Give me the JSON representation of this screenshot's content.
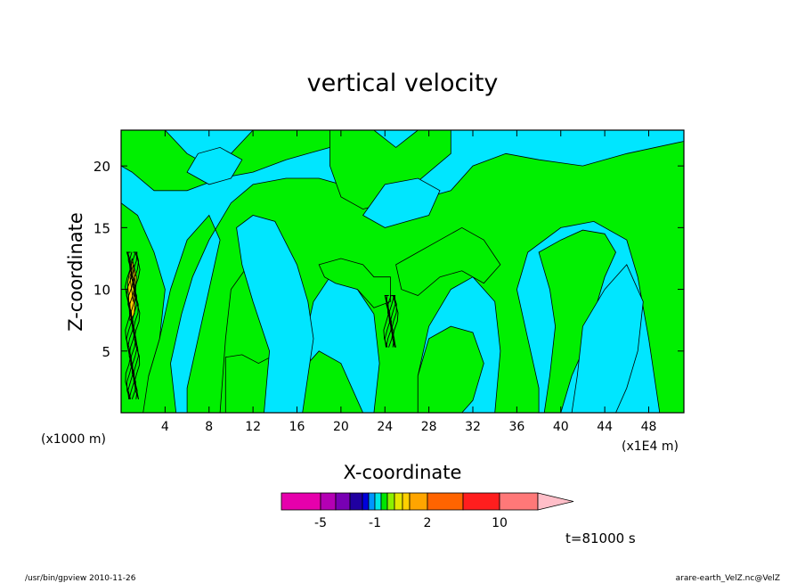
{
  "chart_data": {
    "type": "heatmap",
    "title": "vertical velocity",
    "xlabel": "X-coordinate",
    "ylabel": "Z-coordinate",
    "x_unit_left": "(x1000 m)",
    "x_unit_right": "(x1E4 m)",
    "xlim": [
      0,
      51.2
    ],
    "ylim": [
      0,
      22.9
    ],
    "x_ticks": [
      4,
      8,
      12,
      16,
      20,
      24,
      28,
      32,
      36,
      40,
      44,
      48
    ],
    "y_ticks": [
      5,
      10,
      15,
      20
    ],
    "grid": false,
    "time_label": "t=81000 s",
    "colorbar": {
      "boundaries": [
        -10,
        -5,
        -4,
        -3,
        -2,
        -1.5,
        -1,
        -0.5,
        0,
        0.5,
        1,
        1.5,
        2,
        5,
        10,
        15,
        20
      ],
      "tick_values": [
        -5,
        -1,
        2,
        10
      ],
      "colors": [
        "#e600ac",
        "#b400b4",
        "#7800b4",
        "#2000a0",
        "#0000dc",
        "#0096ff",
        "#00e6e6",
        "#00e600",
        "#8cf000",
        "#e6e600",
        "#ffd000",
        "#ffa500",
        "#ff6400",
        "#ff1e1e",
        "#ff7878"
      ],
      "extend_color": "#ffbec8",
      "tick_labels": [
        "-5",
        "-1",
        "2",
        "10"
      ]
    },
    "dominant_field_colors": {
      "weak_negative": "#00e6ff",
      "weak_positive": "#00f000"
    }
  },
  "footer": {
    "left": "/usr/bin/gpview   2010-11-26",
    "right": "arare-earth_VelZ.nc@VelZ"
  }
}
